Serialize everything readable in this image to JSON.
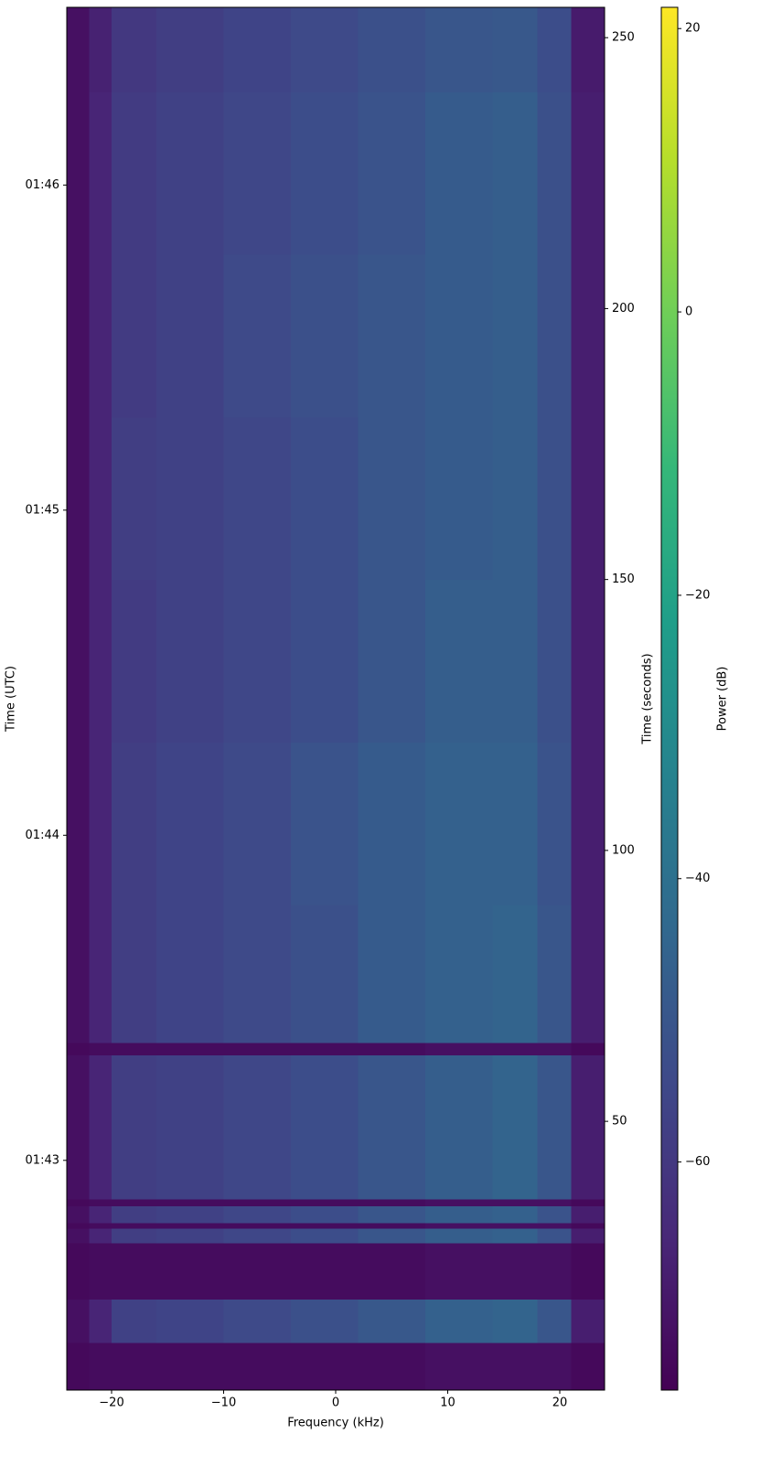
{
  "chart_data": {
    "type": "heatmap",
    "xlabel": "Frequency (kHz)",
    "ylabel": "Time (UTC)",
    "y2label": "Time (seconds)",
    "colorbar_label": "Power (dB)",
    "colormap": "viridis",
    "x_edges": [
      -24,
      -22,
      -20,
      -16,
      -10,
      -4,
      2,
      8,
      14,
      18,
      21,
      24
    ],
    "y_edges": [
      0.4,
      9.2,
      17.2,
      27.6,
      30.3,
      31.3,
      34.4,
      35.7,
      62.3,
      64.5,
      90,
      120,
      150,
      180,
      210,
      240,
      255.6
    ],
    "z": [
      [
        -74,
        -73,
        -73,
        -73,
        -73,
        -73,
        -73,
        -72,
        -72,
        -72,
        -74
      ],
      [
        -72,
        -66,
        -57,
        -56,
        -54,
        -52,
        -49,
        -46,
        -45,
        -50,
        -68
      ],
      [
        -74,
        -73,
        -73,
        -73,
        -73,
        -73,
        -73,
        -72,
        -72,
        -72,
        -74
      ],
      [
        -72,
        -66,
        -58,
        -57,
        -55,
        -53,
        -50,
        -47,
        -46,
        -51,
        -68
      ],
      [
        -74,
        -73,
        -73,
        -73,
        -73,
        -73,
        -73,
        -72,
        -72,
        -72,
        -74
      ],
      [
        -72,
        -66,
        -58,
        -57,
        -55,
        -53,
        -50,
        -47,
        -46,
        -51,
        -68
      ],
      [
        -74,
        -73,
        -73,
        -73,
        -73,
        -73,
        -73,
        -72,
        -72,
        -72,
        -74
      ],
      [
        -72,
        -66,
        -58,
        -57,
        -55,
        -53,
        -50,
        -47,
        -45,
        -50,
        -68
      ],
      [
        -74,
        -73,
        -73,
        -73,
        -73,
        -73,
        -73,
        -72,
        -72,
        -72,
        -74
      ],
      [
        -72,
        -66,
        -58,
        -56,
        -54,
        -52,
        -48,
        -46,
        -45,
        -50,
        -68
      ],
      [
        -72,
        -66,
        -58,
        -56,
        -54,
        -51,
        -48,
        -46,
        -46,
        -51,
        -68
      ],
      [
        -72,
        -66,
        -59,
        -57,
        -55,
        -53,
        -50,
        -47,
        -47,
        -52,
        -68
      ],
      [
        -72,
        -66,
        -58,
        -57,
        -55,
        -53,
        -50,
        -48,
        -47,
        -52,
        -68
      ],
      [
        -72,
        -66,
        -59,
        -57,
        -54,
        -52,
        -50,
        -48,
        -47,
        -52,
        -68
      ],
      [
        -72,
        -66,
        -59,
        -57,
        -55,
        -53,
        -51,
        -48,
        -47,
        -52,
        -68
      ],
      [
        -72,
        -67,
        -60,
        -58,
        -56,
        -54,
        -52,
        -50,
        -49,
        -53,
        -69
      ]
    ],
    "xlim": [
      -24,
      24
    ],
    "xticks": [
      {
        "value": -20,
        "label": "−20"
      },
      {
        "value": -10,
        "label": "−10"
      },
      0,
      10,
      20
    ],
    "ylim": [
      0.4,
      255.6
    ],
    "yticks": [
      {
        "value": 42.8,
        "label": "01:43"
      },
      {
        "value": 102.8,
        "label": "01:44"
      },
      {
        "value": 162.8,
        "label": "01:45"
      },
      {
        "value": 222.8,
        "label": "01:46"
      }
    ],
    "y2lim": [
      0.4,
      255.6
    ],
    "y2ticks": [
      50,
      100,
      150,
      200,
      250
    ],
    "clim": [
      -76.1,
      21.5
    ],
    "cticks": [
      {
        "value": -60,
        "label": "−60"
      },
      {
        "value": -40,
        "label": "−40"
      },
      {
        "value": -20,
        "label": "−20"
      },
      0,
      20
    ]
  }
}
